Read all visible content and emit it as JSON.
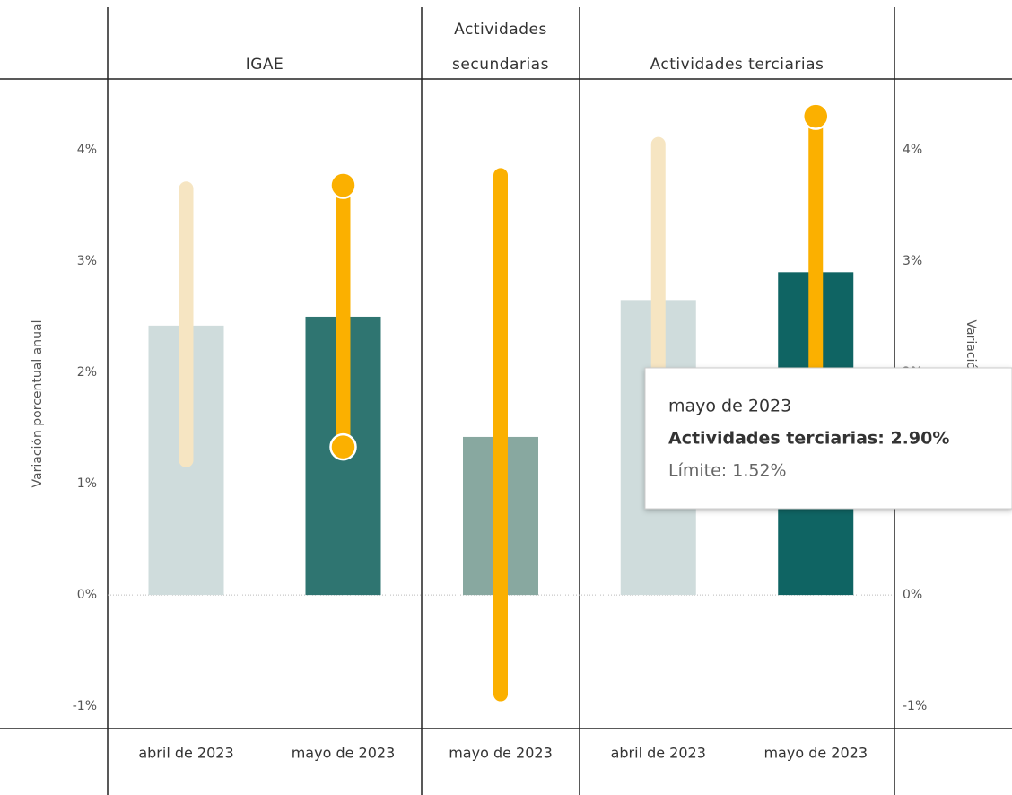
{
  "chart_data": {
    "type": "bar",
    "y_label": "Variación porcentual anual",
    "y2_label": "Variación porcentual anual",
    "ylim": [
      -1.2,
      4.7
    ],
    "yticks": [
      {
        "value": -1,
        "label": "-1%"
      },
      {
        "value": 0,
        "label": "0%"
      },
      {
        "value": 1,
        "label": "1%"
      },
      {
        "value": 2,
        "label": "2%"
      },
      {
        "value": 3,
        "label": "3%"
      },
      {
        "value": 4,
        "label": "4%"
      }
    ],
    "y2ticks": [
      {
        "value": -1,
        "label": "-1%"
      },
      {
        "value": 0,
        "label": "0%"
      },
      {
        "value": 1,
        "label": "1%"
      },
      {
        "value": 2,
        "label": "2%"
      },
      {
        "value": 3,
        "label": "3%"
      },
      {
        "value": 4,
        "label": "4%"
      }
    ],
    "panels": [
      {
        "name": [
          "IGAE"
        ],
        "bars": [
          {
            "category": "abril de 2023",
            "value": 2.42,
            "color": "#cfdcdc",
            "low": 1.21,
            "high": 3.65,
            "range_color": "#f6e5c2",
            "dots": false
          },
          {
            "category": "mayo de 2023",
            "value": 2.5,
            "color": "#2f7571",
            "low": 1.33,
            "high": 3.68,
            "range_color": "#fbb000",
            "dots": true
          }
        ]
      },
      {
        "name": [
          "Actividades",
          "secundarias"
        ],
        "bars": [
          {
            "category": "mayo de 2023",
            "value": 1.42,
            "color": "#88a8a0",
            "low": -0.89,
            "high": 3.77,
            "range_color": "#fbb000",
            "dots": false
          }
        ]
      },
      {
        "name": [
          "Actividades terciarias"
        ],
        "bars": [
          {
            "category": "abril de 2023",
            "value": 2.65,
            "color": "#cfdcdc",
            "low": 1.6,
            "high": 4.05,
            "range_color": "#f6e5c2",
            "dots": false
          },
          {
            "category": "mayo de 2023",
            "value": 2.9,
            "color": "#0f6463",
            "low": 1.52,
            "high": 4.3,
            "range_color": "#fbb000",
            "dots": true
          }
        ]
      }
    ],
    "tooltip": [
      "mayo de 2023",
      "Actividades terciarias: 2.90%",
      "Límite: 1.52%"
    ]
  }
}
